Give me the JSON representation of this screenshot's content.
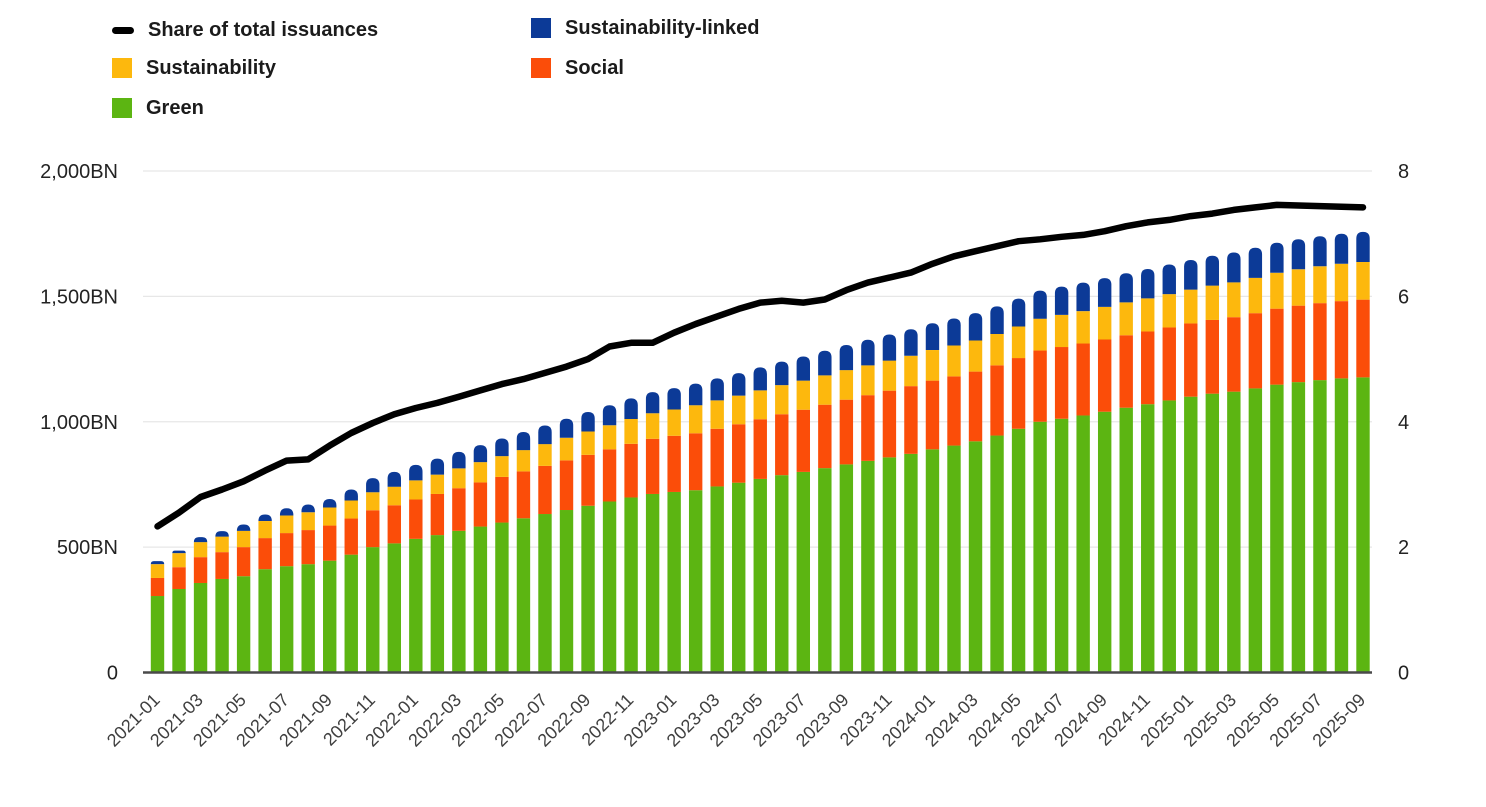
{
  "legend": {
    "items": [
      {
        "label": "Share of total issuances",
        "swatch": "line",
        "color": "#000000"
      },
      {
        "label": "Sustainability-linked",
        "swatch": "box",
        "color": "#0C3A97"
      },
      {
        "label": "Sustainability",
        "swatch": "box",
        "color": "#FDB80D"
      },
      {
        "label": "Social",
        "swatch": "box",
        "color": "#FB4D09"
      },
      {
        "label": "Green",
        "swatch": "box",
        "color": "#5CB512"
      }
    ]
  },
  "chart_data": {
    "type": "bar",
    "subtype": "stacked-columns-with-line",
    "left_axis": {
      "max": 2000,
      "ticks": [
        {
          "value": 0,
          "label": "0"
        },
        {
          "value": 500,
          "label": "500BN"
        },
        {
          "value": 1000,
          "label": "1,000BN"
        },
        {
          "value": 1500,
          "label": "1,500BN"
        },
        {
          "value": 2000,
          "label": "2,000BN"
        }
      ]
    },
    "right_axis": {
      "max": 8,
      "ticks": [
        {
          "value": 0,
          "label": "0"
        },
        {
          "value": 2,
          "label": "2"
        },
        {
          "value": 4,
          "label": "4"
        },
        {
          "value": 6,
          "label": "6"
        },
        {
          "value": 8,
          "label": "8"
        }
      ]
    },
    "x_label_every": 2,
    "categories": [
      "2021-01",
      "2021-02",
      "2021-03",
      "2021-04",
      "2021-05",
      "2021-06",
      "2021-07",
      "2021-08",
      "2021-09",
      "2021-10",
      "2021-11",
      "2021-12",
      "2022-01",
      "2022-02",
      "2022-03",
      "2022-04",
      "2022-05",
      "2022-06",
      "2022-07",
      "2022-08",
      "2022-09",
      "2022-10",
      "2022-11",
      "2022-12",
      "2023-01",
      "2023-02",
      "2023-03",
      "2023-04",
      "2023-05",
      "2023-06",
      "2023-07",
      "2023-08",
      "2023-09",
      "2023-10",
      "2023-11",
      "2023-12",
      "2024-01",
      "2024-02",
      "2024-03",
      "2024-04",
      "2024-05",
      "2024-06",
      "2024-07",
      "2024-08",
      "2024-09",
      "2024-10",
      "2024-11",
      "2024-12",
      "2025-01",
      "2025-02",
      "2025-03",
      "2025-04",
      "2025-05",
      "2025-06",
      "2025-07",
      "2025-08",
      "2025-09"
    ],
    "series": [
      {
        "name": "Green",
        "type": "column",
        "color": "#5CB512",
        "values": [
          305,
          333,
          357,
          373,
          384,
          412,
          424,
          432,
          446,
          470,
          500,
          515,
          533,
          548,
          565,
          582,
          598,
          615,
          632,
          648,
          665,
          682,
          698,
          712,
          720,
          727,
          742,
          757,
          772,
          787,
          800,
          815,
          830,
          844,
          858,
          872,
          890,
          905,
          922,
          945,
          972,
          1000,
          1012,
          1025,
          1040,
          1056,
          1070,
          1085,
          1100,
          1112,
          1120,
          1133,
          1148,
          1158,
          1166,
          1173,
          1177
        ]
      },
      {
        "name": "Social",
        "type": "column",
        "color": "#FB4D09",
        "values": [
          72,
          87,
          103,
          107,
          116,
          124,
          132,
          136,
          140,
          144,
          147,
          152,
          157,
          164,
          170,
          176,
          182,
          187,
          192,
          198,
          203,
          208,
          214,
          220,
          224,
          227,
          230,
          233,
          238,
          243,
          248,
          253,
          258,
          262,
          266,
          270,
          274,
          276,
          278,
          280,
          282,
          284,
          286,
          287,
          288,
          289,
          290,
          291,
          292,
          294,
          297,
          300,
          303,
          305,
          307,
          308,
          310
        ]
      },
      {
        "name": "Sustainability",
        "type": "column",
        "color": "#FDB80D",
        "values": [
          55,
          56,
          60,
          62,
          65,
          68,
          70,
          71,
          72,
          72,
          72,
          74,
          76,
          77,
          79,
          81,
          83,
          85,
          87,
          90,
          93,
          96,
          99,
          102,
          105,
          112,
          113,
          114,
          115,
          116,
          116,
          117,
          118,
          119,
          120,
          121,
          122,
          123,
          124,
          125,
          126,
          127,
          128,
          129,
          130,
          131,
          132,
          133,
          135,
          137,
          139,
          141,
          143,
          145,
          147,
          149,
          150
        ]
      },
      {
        "name": "Sustainability-linked",
        "type": "column",
        "color": "#0C3A97",
        "values": [
          12,
          10,
          20,
          22,
          25,
          26,
          29,
          31,
          34,
          44,
          56,
          59,
          62,
          64,
          66,
          68,
          70,
          72,
          74,
          76,
          78,
          80,
          82,
          84,
          85,
          86,
          88,
          90,
          92,
          94,
          96,
          98,
          100,
          102,
          104,
          106,
          107,
          108,
          109,
          110,
          111,
          112,
          113,
          114,
          115,
          116,
          117,
          118,
          118,
          119,
          119,
          120,
          120,
          120,
          120,
          120,
          120
        ]
      },
      {
        "name": "Share of total issuances",
        "type": "line",
        "axis": "right",
        "color": "#000000",
        "values": [
          2.33,
          2.55,
          2.8,
          2.92,
          3.05,
          3.22,
          3.38,
          3.4,
          3.62,
          3.82,
          3.98,
          4.12,
          4.22,
          4.3,
          4.4,
          4.5,
          4.6,
          4.68,
          4.78,
          4.88,
          5.0,
          5.2,
          5.26,
          5.26,
          5.42,
          5.56,
          5.68,
          5.8,
          5.9,
          5.93,
          5.9,
          5.95,
          6.1,
          6.22,
          6.3,
          6.38,
          6.52,
          6.64,
          6.72,
          6.8,
          6.88,
          6.91,
          6.95,
          6.98,
          7.04,
          7.12,
          7.18,
          7.22,
          7.28,
          7.32,
          7.38,
          7.42,
          7.46,
          7.45,
          7.44,
          7.43,
          7.42
        ]
      }
    ],
    "colors": {
      "grid": "#E7E7E7",
      "axis_line": "#4A4A4A",
      "y_tick_label": "#232323",
      "x_tick_label": "#3F3F3F",
      "background": "#FFFFFF"
    }
  }
}
